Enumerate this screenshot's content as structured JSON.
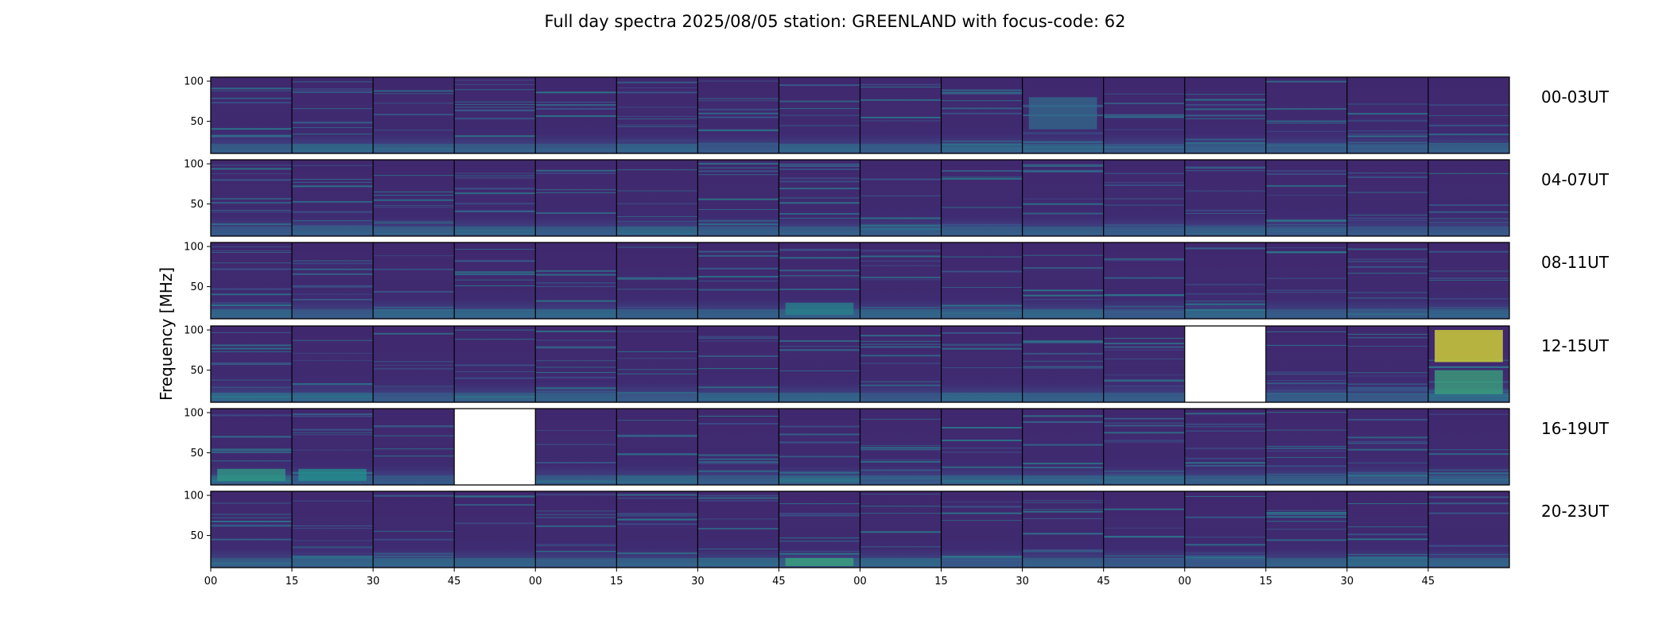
{
  "chart_data": {
    "type": "heatmap",
    "title": "Full day spectra 2025/08/05 station: GREENLAND with focus-code: 62",
    "ylabel": "Frequency [MHz]",
    "xlabel": "",
    "ylim": [
      10,
      105
    ],
    "yticks": [
      100,
      50
    ],
    "xticks": [
      "00",
      "15",
      "30",
      "45",
      "00",
      "15",
      "30",
      "45",
      "00",
      "15",
      "30",
      "45",
      "00",
      "15",
      "30",
      "45"
    ],
    "colormap": "viridis",
    "rows": [
      {
        "label": "00-03UT",
        "missing_panels": [],
        "bursts": [
          {
            "panel": 10,
            "fmin": 40,
            "fmax": 80,
            "intensity": 0.35
          }
        ]
      },
      {
        "label": "04-07UT",
        "missing_panels": [],
        "bursts": []
      },
      {
        "label": "08-11UT",
        "missing_panels": [],
        "bursts": [
          {
            "panel": 7,
            "fmin": 15,
            "fmax": 30,
            "intensity": 0.45
          }
        ]
      },
      {
        "label": "12-15UT",
        "missing_panels": [
          12
        ],
        "bursts": [
          {
            "panel": 15,
            "fmin": 60,
            "fmax": 100,
            "intensity": 0.95
          },
          {
            "panel": 15,
            "fmin": 20,
            "fmax": 50,
            "intensity": 0.6
          }
        ]
      },
      {
        "label": "16-19UT",
        "missing_panels": [
          3
        ],
        "bursts": [
          {
            "panel": 0,
            "fmin": 15,
            "fmax": 30,
            "intensity": 0.55
          },
          {
            "panel": 1,
            "fmin": 15,
            "fmax": 30,
            "intensity": 0.5
          }
        ]
      },
      {
        "label": "20-23UT",
        "missing_panels": [],
        "bursts": [
          {
            "panel": 7,
            "fmin": 12,
            "fmax": 22,
            "intensity": 0.6
          }
        ]
      }
    ]
  }
}
